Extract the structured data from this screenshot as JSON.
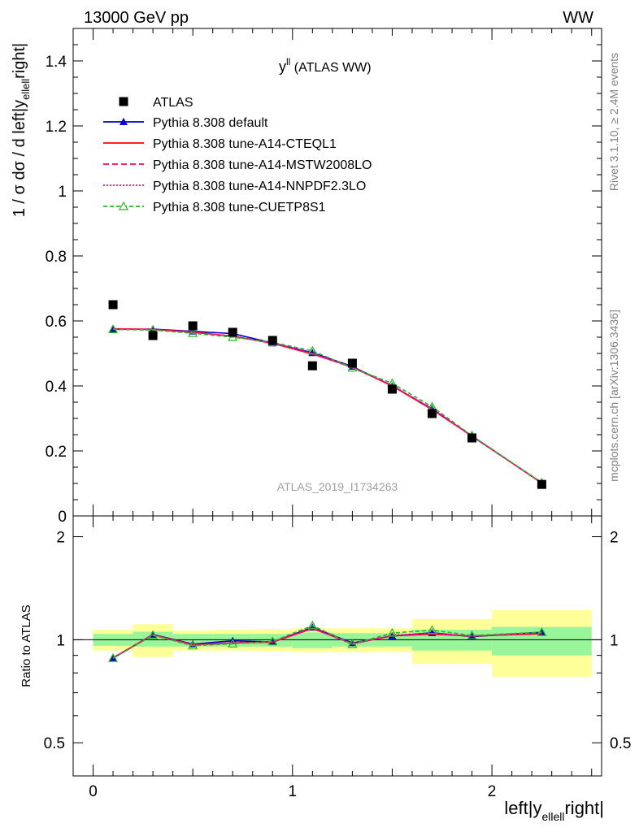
{
  "header": {
    "left": "13000 GeV pp",
    "right": "WW"
  },
  "side_labels": {
    "rivet": "Rivet 3.1.10, ≥ 2.4M events",
    "mcplots": "mcplots.cern.ch [arXiv:1306.3436]"
  },
  "chart_data": {
    "type": "line",
    "title": "y^ll (ATLAS WW)",
    "title_main": "y",
    "title_sup": "ll",
    "title_rest": " (ATLAS WW)",
    "watermark": "ATLAS_2019_I1734263",
    "xlabel": "left|y_ellell right|",
    "xlabel_parts": [
      "left|y",
      "ellell",
      "right|"
    ],
    "ylabel": "1 / σ  dσ / d left|y_ellell right|",
    "ylabel_parts": [
      "1 / σ  dσ / d left|y",
      "ellell",
      "right|"
    ],
    "ratio_ylabel": "Ratio to ATLAS",
    "xlim": [
      -0.1,
      2.55
    ],
    "ylim": [
      0,
      1.5
    ],
    "ratio_ylim": [
      0.4,
      2.3
    ],
    "x_ticks": [
      "0",
      "1",
      "2"
    ],
    "y_ticks": [
      "0",
      "0.2",
      "0.4",
      "0.6",
      "0.8",
      "1",
      "1.2",
      "1.4"
    ],
    "ratio_ticks": [
      "0.5",
      "1",
      "2"
    ],
    "bins": [
      {
        "lo": 0.0,
        "hi": 0.2
      },
      {
        "lo": 0.2,
        "hi": 0.4
      },
      {
        "lo": 0.4,
        "hi": 0.6
      },
      {
        "lo": 0.6,
        "hi": 0.8
      },
      {
        "lo": 0.8,
        "hi": 1.0
      },
      {
        "lo": 1.0,
        "hi": 1.2
      },
      {
        "lo": 1.2,
        "hi": 1.4
      },
      {
        "lo": 1.4,
        "hi": 1.6
      },
      {
        "lo": 1.6,
        "hi": 1.8
      },
      {
        "lo": 1.8,
        "hi": 2.0
      },
      {
        "lo": 2.0,
        "hi": 2.5
      }
    ],
    "x": [
      0.1,
      0.3,
      0.5,
      0.7,
      0.9,
      1.1,
      1.3,
      1.5,
      1.7,
      1.9,
      2.25
    ],
    "data": {
      "name": "ATLAS",
      "values": [
        0.65,
        0.555,
        0.585,
        0.565,
        0.54,
        0.462,
        0.47,
        0.39,
        0.315,
        0.24,
        0.097
      ],
      "band_green": [
        [
          0.96,
          1.04
        ],
        [
          0.955,
          1.055
        ],
        [
          0.955,
          1.04
        ],
        [
          0.955,
          1.04
        ],
        [
          0.955,
          1.04
        ],
        [
          0.945,
          1.05
        ],
        [
          0.955,
          1.045
        ],
        [
          0.955,
          1.045
        ],
        [
          0.93,
          1.07
        ],
        [
          0.93,
          1.07
        ],
        [
          0.9,
          1.09
        ]
      ],
      "band_yellow": [
        [
          0.93,
          1.07
        ],
        [
          0.89,
          1.11
        ],
        [
          0.93,
          1.065
        ],
        [
          0.93,
          1.07
        ],
        [
          0.925,
          1.075
        ],
        [
          0.92,
          1.08
        ],
        [
          0.92,
          1.08
        ],
        [
          0.92,
          1.08
        ],
        [
          0.85,
          1.15
        ],
        [
          0.85,
          1.15
        ],
        [
          0.78,
          1.22
        ]
      ]
    },
    "series": [
      {
        "name": "Pythia 8.308 default",
        "color": "#0000cc",
        "dash": "",
        "marker": "triangle-filled",
        "values": [
          0.574,
          0.575,
          0.568,
          0.561,
          0.532,
          0.502,
          0.46,
          0.4,
          0.33,
          0.245,
          0.102
        ]
      },
      {
        "name": "Pythia 8.308 tune-A14-CTEQL1",
        "color": "#ff0000",
        "dash": "",
        "marker": "none",
        "values": [
          0.576,
          0.574,
          0.566,
          0.553,
          0.531,
          0.498,
          0.458,
          0.4,
          0.327,
          0.246,
          0.101
        ]
      },
      {
        "name": "Pythia 8.308 tune-A14-MSTW2008LO",
        "color": "#ff0066",
        "dash": "7,4",
        "marker": "none",
        "values": [
          0.575,
          0.574,
          0.565,
          0.553,
          0.532,
          0.5,
          0.457,
          0.401,
          0.328,
          0.246,
          0.101
        ]
      },
      {
        "name": "Pythia 8.308 tune-A14-NNPDF2.3LO",
        "color": "#ff00aa",
        "dash": "2,2",
        "marker": "none",
        "values": [
          0.575,
          0.573,
          0.564,
          0.554,
          0.531,
          0.5,
          0.456,
          0.402,
          0.329,
          0.246,
          0.102
        ]
      },
      {
        "name": "Pythia 8.308 tune-CUETP8S1",
        "color": "#22bb22",
        "dash": "5,3",
        "marker": "triangle-open",
        "values": [
          0.574,
          0.572,
          0.562,
          0.55,
          0.534,
          0.508,
          0.456,
          0.408,
          0.336,
          0.247,
          0.102
        ]
      }
    ]
  }
}
